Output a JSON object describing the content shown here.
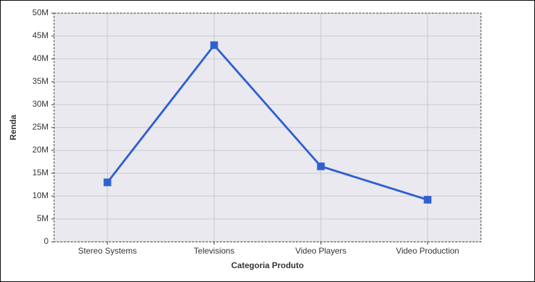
{
  "chart_data": {
    "type": "line",
    "x_label": "Categoria Produto",
    "y_label": "Renda",
    "categories": [
      "Stereo Systems",
      "Televisions",
      "Video Players",
      "Video Production"
    ],
    "values": [
      13000000,
      43000000,
      16500000,
      9200000
    ],
    "color": "#3060d0",
    "ylim": [
      0,
      50000000
    ],
    "yticks": [
      0,
      {
        "value": 5000000,
        "label": "5M"
      },
      {
        "value": 10000000,
        "label": "10M"
      },
      {
        "value": 15000000,
        "label": "15M"
      },
      {
        "value": 20000000,
        "label": "20M"
      },
      {
        "value": 25000000,
        "label": "25M"
      },
      {
        "value": 30000000,
        "label": "30M"
      },
      {
        "value": 35000000,
        "label": "35M"
      },
      {
        "value": 40000000,
        "label": "40M"
      },
      {
        "value": 45000000,
        "label": "45M"
      },
      {
        "value": 50000000,
        "label": "50M"
      }
    ],
    "grid": true
  }
}
